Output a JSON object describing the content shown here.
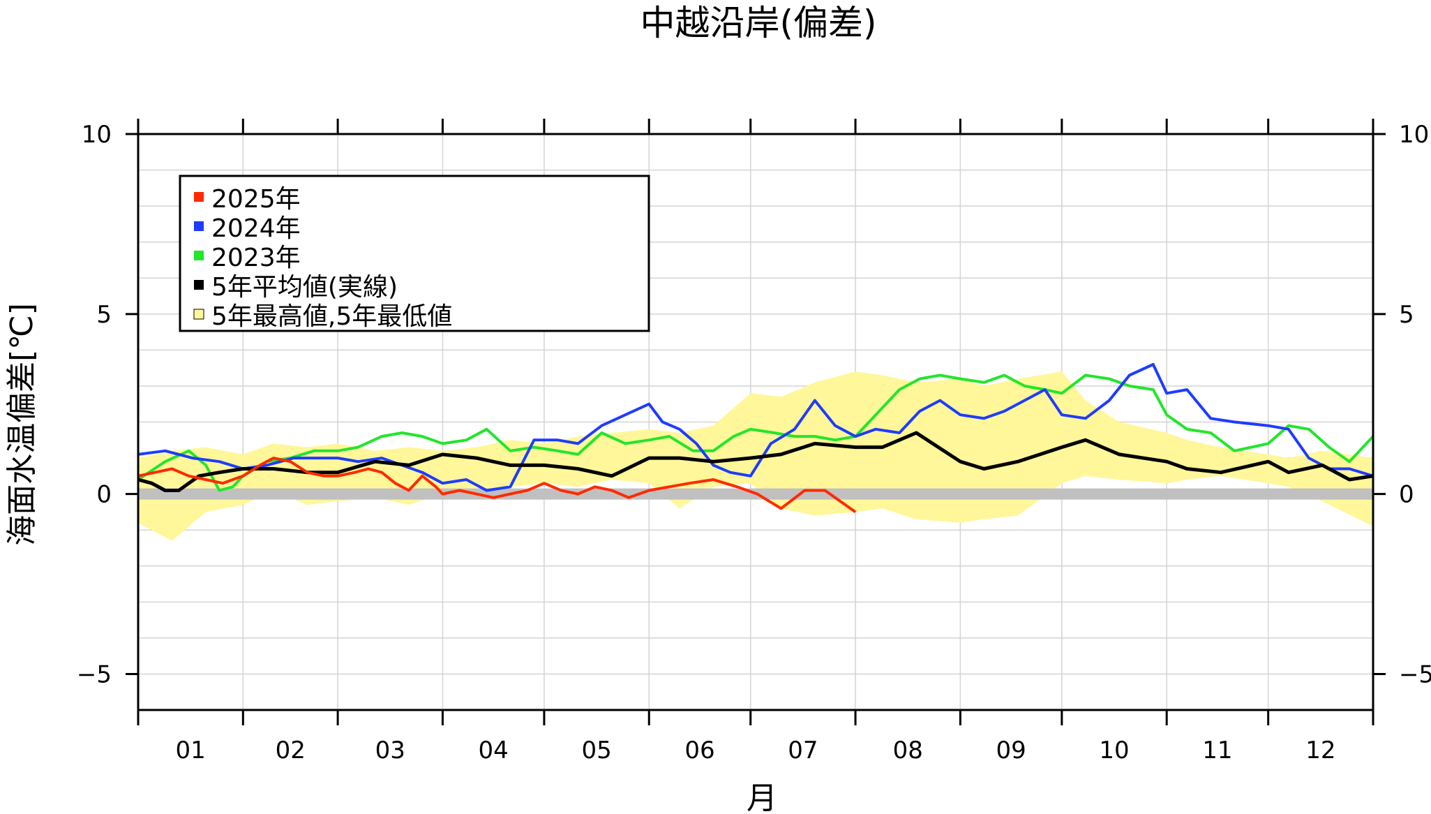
{
  "chart_data": {
    "type": "line",
    "title": "中越沿岸(偏差)",
    "xlabel": "月",
    "ylabel": "海面水温偏差[℃]",
    "x_tick_labels": [
      "01",
      "02",
      "03",
      "04",
      "05",
      "06",
      "07",
      "08",
      "09",
      "10",
      "11",
      "12"
    ],
    "y_ticks": [
      10,
      5,
      0,
      -5
    ],
    "y_tick_labels": [
      "10",
      "5",
      "0",
      "−5"
    ],
    "ylim": [
      -6,
      10
    ],
    "xlim": [
      0,
      365
    ],
    "x_unit": "day_of_year",
    "grid": true,
    "minor_y_step": 1,
    "zero_line": {
      "value": 0,
      "color": "#c0c0c0"
    },
    "legend": {
      "position": "upper-left",
      "items": [
        {
          "label": "2025年",
          "color": "#ff2a00"
        },
        {
          "label": "2024年",
          "color": "#1e3cff"
        },
        {
          "label": "2023年",
          "color": "#22e62a"
        },
        {
          "label": "5年平均値(実線)",
          "color": "#000000"
        },
        {
          "label": "5年最高値,5年最低値",
          "color": "#fff799"
        }
      ]
    },
    "band": {
      "name": "5年最高値,5年最低値",
      "color": "#fff799",
      "x": [
        0,
        10,
        20,
        31,
        40,
        50,
        59,
        70,
        80,
        90,
        100,
        110,
        120,
        130,
        140,
        151,
        160,
        170,
        181,
        190,
        200,
        212,
        220,
        230,
        243,
        250,
        260,
        273,
        280,
        290,
        304,
        310,
        320,
        334,
        340,
        350,
        365
      ],
      "upper": [
        1.0,
        1.2,
        1.3,
        1.1,
        1.4,
        1.3,
        1.4,
        1.2,
        1.3,
        1.2,
        1.3,
        1.5,
        1.4,
        1.6,
        1.7,
        1.8,
        1.7,
        1.9,
        2.8,
        2.7,
        3.1,
        3.4,
        3.3,
        3.1,
        3.2,
        3.0,
        3.2,
        3.4,
        2.6,
        2.0,
        1.7,
        1.5,
        1.3,
        1.1,
        1.0,
        1.2,
        1.0
      ],
      "lower": [
        -0.8,
        -1.3,
        -0.5,
        -0.3,
        0.1,
        -0.3,
        -0.2,
        -0.1,
        -0.3,
        0.0,
        0.1,
        0.2,
        0.3,
        0.2,
        0.4,
        0.3,
        -0.4,
        0.2,
        0.3,
        -0.4,
        -0.6,
        -0.5,
        -0.4,
        -0.7,
        -0.8,
        -0.7,
        -0.6,
        0.3,
        0.5,
        0.4,
        0.3,
        0.4,
        0.5,
        0.3,
        0.2,
        -0.2,
        -0.9
      ]
    },
    "series": [
      {
        "name": "2025年",
        "color": "#ff2a00",
        "x": [
          0,
          5,
          10,
          15,
          20,
          25,
          31,
          36,
          40,
          45,
          50,
          55,
          59,
          64,
          68,
          72,
          76,
          80,
          84,
          88,
          90,
          95,
          100,
          105,
          110,
          115,
          120,
          125,
          130,
          135,
          140,
          145,
          151,
          157,
          163,
          170,
          177,
          183,
          190,
          197,
          203,
          212
        ],
        "y": [
          0.5,
          0.6,
          0.7,
          0.5,
          0.4,
          0.3,
          0.5,
          0.8,
          1.0,
          0.9,
          0.6,
          0.5,
          0.5,
          0.6,
          0.7,
          0.6,
          0.3,
          0.1,
          0.5,
          0.2,
          0.0,
          0.1,
          0.0,
          -0.1,
          0.0,
          0.1,
          0.3,
          0.1,
          0.0,
          0.2,
          0.1,
          -0.1,
          0.1,
          0.2,
          0.3,
          0.4,
          0.2,
          0.0,
          -0.4,
          0.1,
          0.1,
          -0.5
        ]
      },
      {
        "name": "2024年",
        "color": "#1e3cff",
        "x": [
          0,
          8,
          16,
          24,
          31,
          38,
          46,
          52,
          59,
          65,
          72,
          78,
          84,
          90,
          97,
          103,
          110,
          117,
          124,
          130,
          137,
          144,
          151,
          155,
          160,
          165,
          170,
          175,
          181,
          187,
          194,
          200,
          206,
          212,
          218,
          225,
          231,
          237,
          243,
          250,
          256,
          262,
          268,
          273,
          280,
          287,
          293,
          300,
          304,
          310,
          317,
          324,
          334,
          340,
          346,
          352,
          358,
          365
        ],
        "y": [
          1.1,
          1.2,
          1.0,
          0.9,
          0.7,
          0.8,
          1.0,
          1.0,
          1.0,
          0.9,
          1.0,
          0.8,
          0.6,
          0.3,
          0.4,
          0.1,
          0.2,
          1.5,
          1.5,
          1.4,
          1.9,
          2.2,
          2.5,
          2.0,
          1.8,
          1.4,
          0.8,
          0.6,
          0.5,
          1.4,
          1.8,
          2.6,
          1.9,
          1.6,
          1.8,
          1.7,
          2.3,
          2.6,
          2.2,
          2.1,
          2.3,
          2.6,
          2.9,
          2.2,
          2.1,
          2.6,
          3.3,
          3.6,
          2.8,
          2.9,
          2.1,
          2.0,
          1.9,
          1.8,
          1.0,
          0.7,
          0.7,
          0.5
        ]
      },
      {
        "name": "2023年",
        "color": "#22e62a",
        "x": [
          0,
          8,
          15,
          20,
          24,
          28,
          31,
          38,
          45,
          52,
          59,
          65,
          72,
          78,
          84,
          90,
          97,
          103,
          110,
          117,
          124,
          130,
          137,
          144,
          151,
          157,
          164,
          170,
          176,
          181,
          188,
          194,
          200,
          206,
          212,
          218,
          225,
          231,
          237,
          243,
          250,
          256,
          262,
          268,
          273,
          280,
          287,
          293,
          300,
          304,
          310,
          317,
          324,
          334,
          340,
          346,
          352,
          358,
          365
        ],
        "y": [
          0.4,
          0.9,
          1.2,
          0.8,
          0.1,
          0.2,
          0.5,
          0.9,
          1.0,
          1.2,
          1.2,
          1.3,
          1.6,
          1.7,
          1.6,
          1.4,
          1.5,
          1.8,
          1.2,
          1.3,
          1.2,
          1.1,
          1.7,
          1.4,
          1.5,
          1.6,
          1.2,
          1.2,
          1.6,
          1.8,
          1.7,
          1.6,
          1.6,
          1.5,
          1.6,
          2.2,
          2.9,
          3.2,
          3.3,
          3.2,
          3.1,
          3.3,
          3.0,
          2.9,
          2.8,
          3.3,
          3.2,
          3.0,
          2.9,
          2.2,
          1.8,
          1.7,
          1.2,
          1.4,
          1.9,
          1.8,
          1.3,
          0.9,
          1.6
        ]
      },
      {
        "name": "5年平均値(実線)",
        "color": "#000000",
        "x": [
          0,
          4,
          8,
          12,
          18,
          24,
          31,
          40,
          50,
          59,
          70,
          80,
          90,
          100,
          110,
          120,
          130,
          140,
          151,
          160,
          170,
          181,
          190,
          200,
          212,
          220,
          230,
          243,
          250,
          260,
          273,
          280,
          290,
          304,
          310,
          320,
          334,
          340,
          350,
          358,
          365
        ],
        "y": [
          0.4,
          0.3,
          0.1,
          0.1,
          0.5,
          0.6,
          0.7,
          0.7,
          0.6,
          0.6,
          0.9,
          0.8,
          1.1,
          1.0,
          0.8,
          0.8,
          0.7,
          0.5,
          1.0,
          1.0,
          0.9,
          1.0,
          1.1,
          1.4,
          1.3,
          1.3,
          1.7,
          0.9,
          0.7,
          0.9,
          1.3,
          1.5,
          1.1,
          0.9,
          0.7,
          0.6,
          0.9,
          0.6,
          0.8,
          0.4,
          0.5
        ]
      }
    ]
  }
}
